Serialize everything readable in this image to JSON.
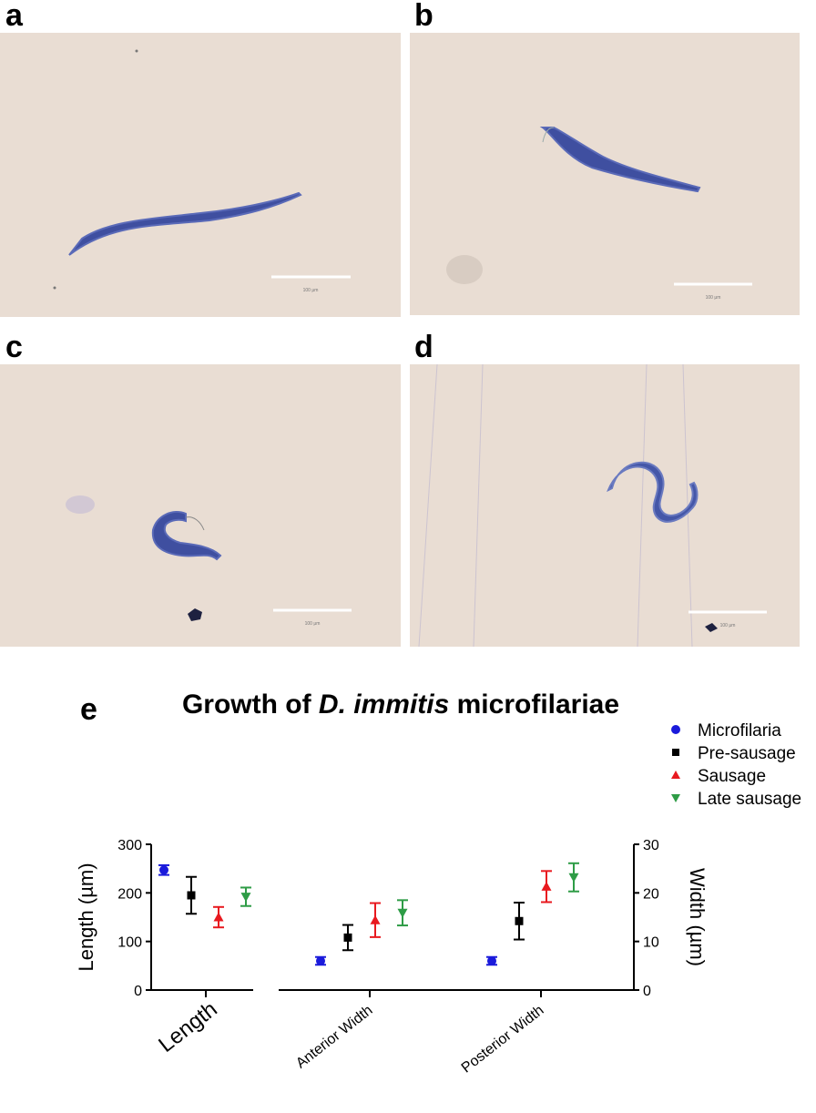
{
  "panels": [
    {
      "label": "a",
      "scale_text": "100 μm"
    },
    {
      "label": "b",
      "scale_text": "100 μm"
    },
    {
      "label": "c",
      "scale_text": "100 μm"
    },
    {
      "label": "d",
      "scale_text": "100 μm"
    }
  ],
  "panel_e_label": "e",
  "chart_data": {
    "type": "scatter",
    "title_prefix": "Growth of ",
    "title_italic": "D. immitis",
    "title_suffix": " microfilariae",
    "categories": [
      "Length",
      "Anterior Width",
      "Posterior Width"
    ],
    "ylabel_left": "Length (µm)",
    "ylabel_right": "Width (µm)",
    "ylim_left": [
      0,
      300
    ],
    "ylim_right": [
      0,
      30
    ],
    "yticks_left": [
      0,
      100,
      200,
      300
    ],
    "yticks_right": [
      0,
      10,
      20,
      30
    ],
    "legend_position": "top-right",
    "series": [
      {
        "name": "Microfilaria",
        "marker": "circle",
        "color": "#1a1adb",
        "values": [
          247,
          6,
          6
        ],
        "err": [
          10,
          0.8,
          0.8
        ]
      },
      {
        "name": "Pre-sausage",
        "marker": "square",
        "color": "#000000",
        "values": [
          195,
          10.8,
          14.2
        ],
        "err": [
          38,
          2.6,
          3.8
        ]
      },
      {
        "name": "Sausage",
        "marker": "triangle-up",
        "color": "#e8191f",
        "values": [
          150,
          14.4,
          21.3
        ],
        "err": [
          21,
          3.5,
          3.2
        ]
      },
      {
        "name": "Late sausage",
        "marker": "triangle-down",
        "color": "#2e9c46",
        "values": [
          192,
          15.9,
          23.2
        ],
        "err": [
          19,
          2.6,
          2.9
        ]
      }
    ]
  }
}
